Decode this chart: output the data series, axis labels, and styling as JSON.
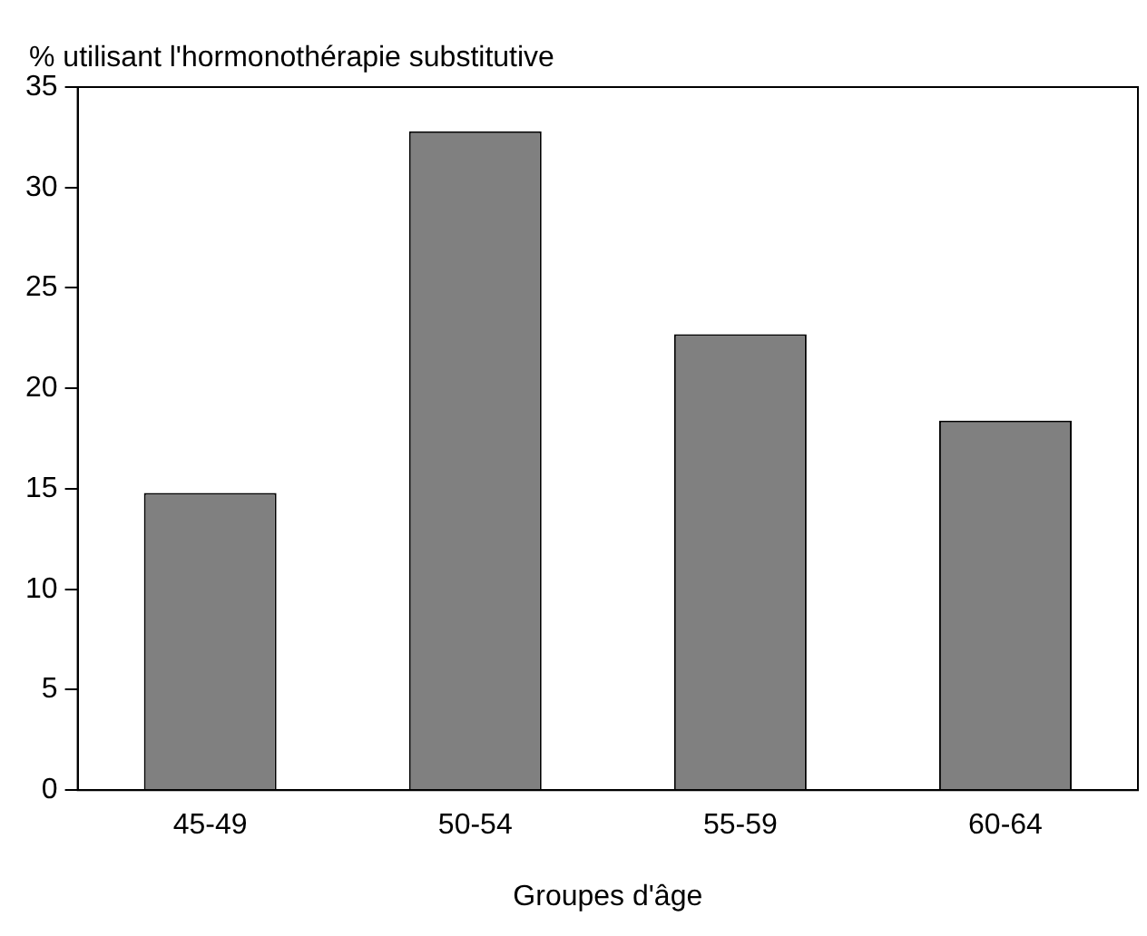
{
  "chart_data": {
    "type": "bar",
    "ylabel": "% utilisant l'hormonothérapie substitutive",
    "xlabel": "Groupes d'âge",
    "categories": [
      "45-49",
      "50-54",
      "55-59",
      "60-64"
    ],
    "values": [
      14.8,
      32.8,
      22.7,
      18.4
    ],
    "color": "#808080",
    "ylim": [
      0,
      35
    ],
    "yticks": [
      0,
      5,
      10,
      15,
      20,
      25,
      30,
      35
    ],
    "grid": false,
    "legend": false
  }
}
